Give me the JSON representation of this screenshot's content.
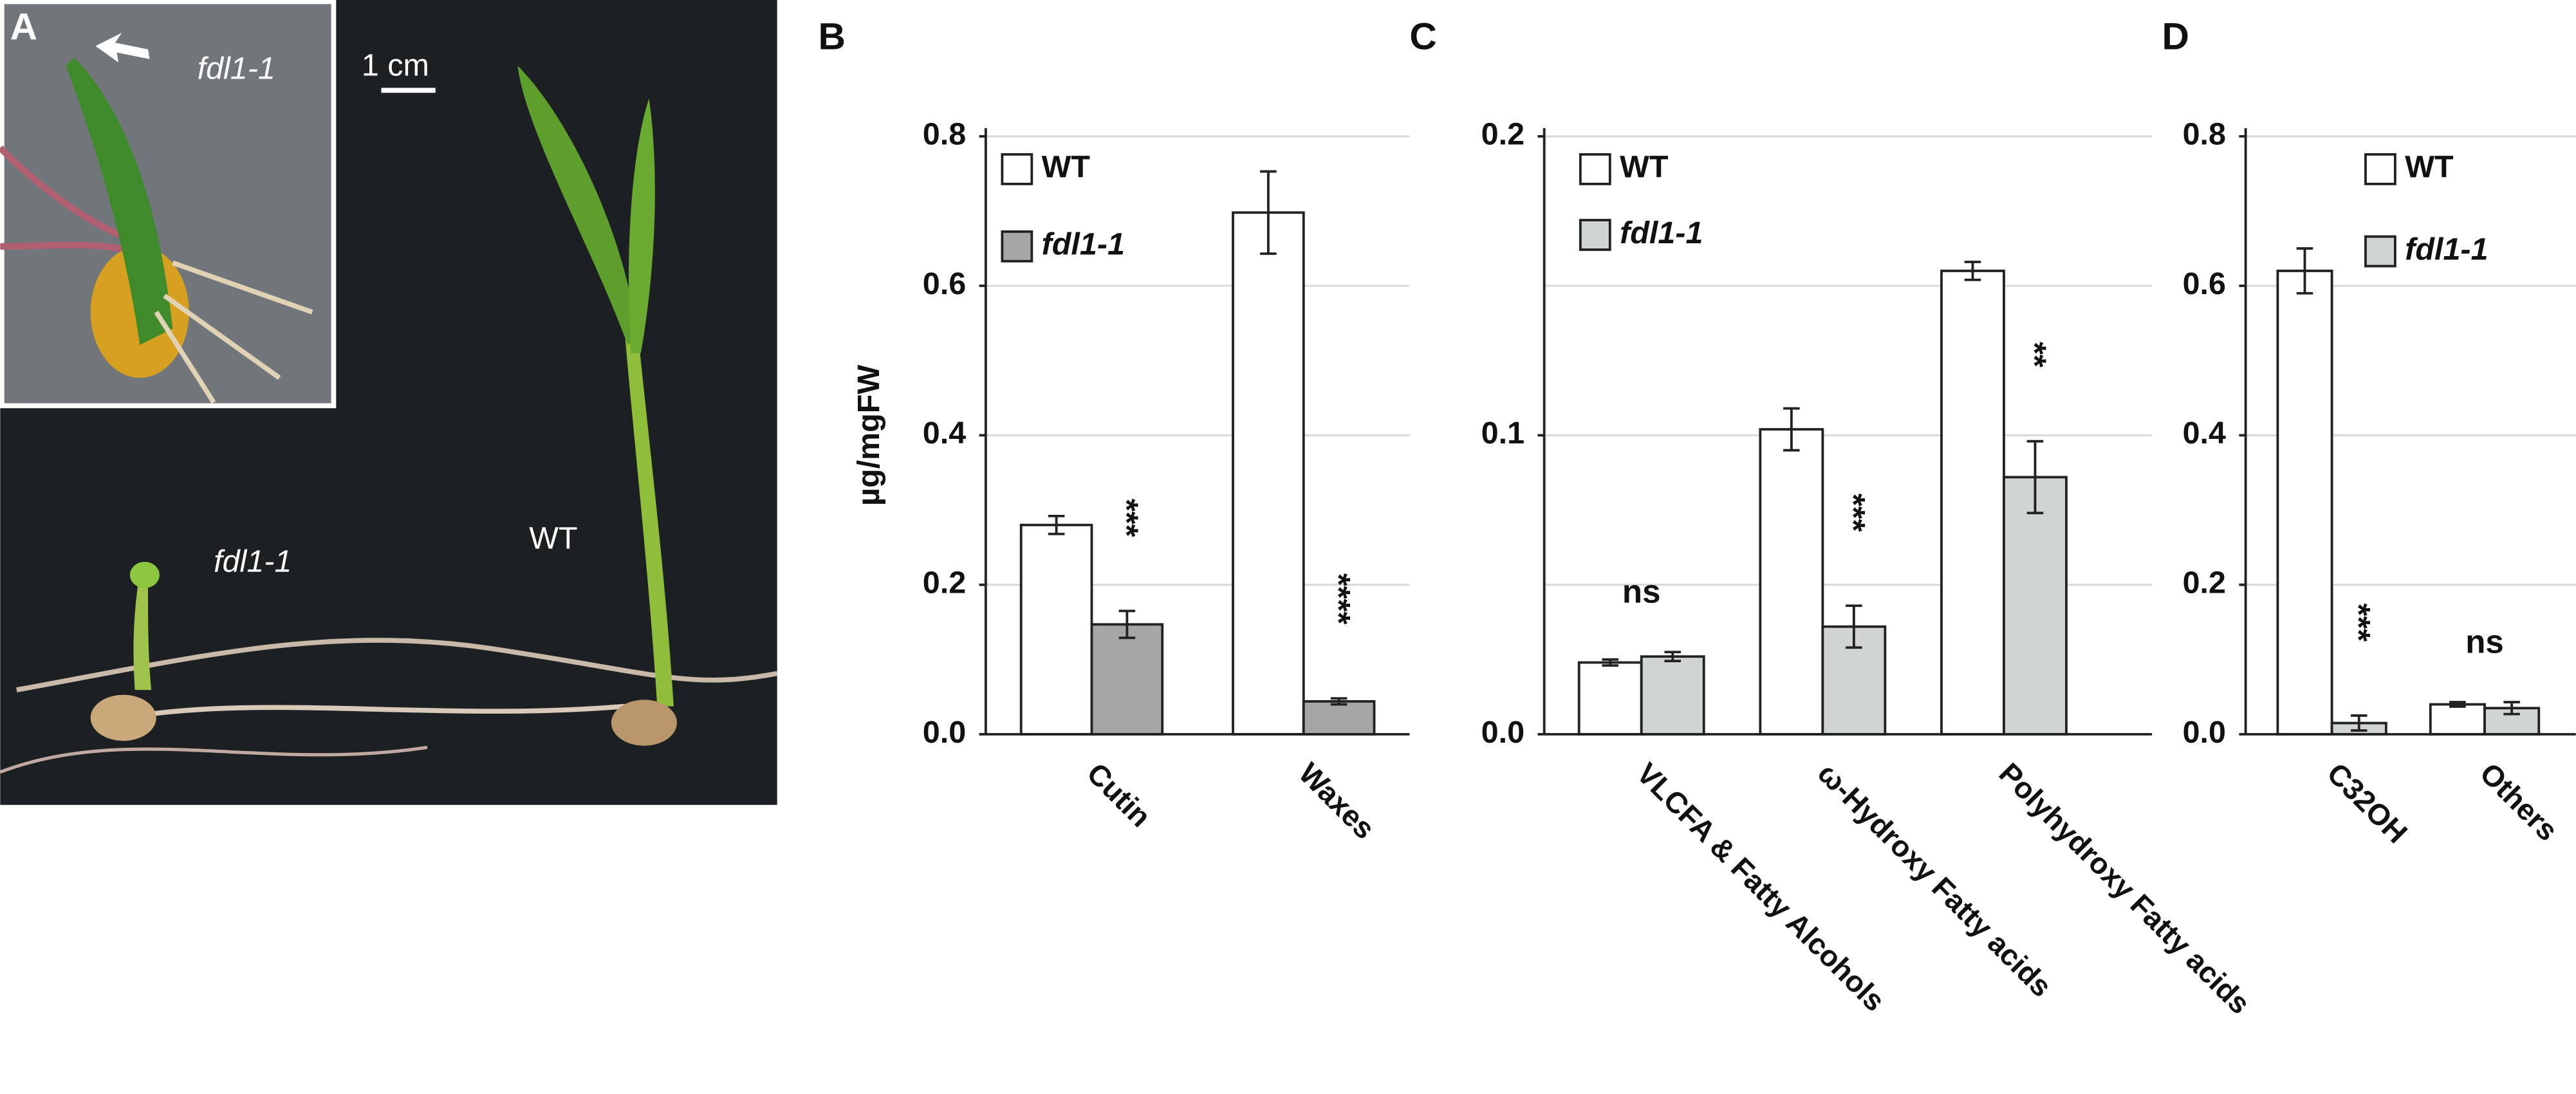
{
  "photo": {
    "panel_label": "A",
    "inset_label": "fdl1-1",
    "scale_bar": "1 cm",
    "mutant_label": "fdl1-1",
    "wt_label": "WT"
  },
  "chart_data": [
    {
      "type": "bar",
      "panel_label": "B",
      "ylabel": "µg/mgFW",
      "categories": [
        "Cutin",
        "Waxes"
      ],
      "series": [
        {
          "name": "WT",
          "color": "#ffffff",
          "values": [
            0.28,
            0.698
          ],
          "errors": [
            0.012,
            0.055
          ]
        },
        {
          "name": "fdl1-1",
          "color": "#a6a6a6",
          "values": [
            0.147,
            0.044
          ],
          "errors": [
            0.018,
            0.004
          ]
        }
      ],
      "significance": [
        "***",
        "****"
      ],
      "ylim": [
        0,
        0.8
      ],
      "yticks": [
        {
          "value": 0,
          "label": "0.0"
        },
        0.2,
        0.4,
        0.6,
        0.8
      ],
      "ygrid": [
        0.2,
        0.4,
        0.6,
        0.8
      ]
    },
    {
      "type": "bar",
      "panel_label": "C",
      "categories": [
        "VLCFA & Fatty Alcohols",
        "ω-Hydroxy Fatty acids",
        "Polyhydroxy Fatty acids"
      ],
      "series": [
        {
          "name": "WT",
          "color": "#ffffff",
          "values": [
            0.024,
            0.102,
            0.155
          ],
          "errors": [
            0.001,
            0.007,
            0.003
          ]
        },
        {
          "name": "fdl1-1",
          "color": "#d0d5d3",
          "values": [
            0.026,
            0.036,
            0.086
          ],
          "errors": [
            0.0015,
            0.007,
            0.012
          ]
        }
      ],
      "significance": [
        "ns",
        "***",
        "**"
      ],
      "ylim": [
        0,
        0.2
      ],
      "yticks": [
        {
          "value": 0,
          "label": "0.0"
        },
        0.1,
        0.2
      ],
      "ygrid": [
        0.05,
        0.1,
        0.15,
        0.2
      ]
    },
    {
      "type": "bar",
      "panel_label": "D",
      "categories": [
        "C32OH",
        "Others"
      ],
      "series": [
        {
          "name": "WT",
          "color": "#ffffff",
          "values": [
            0.62,
            0.04
          ],
          "errors": [
            0.03,
            0.003
          ]
        },
        {
          "name": "fdl1-1",
          "color": "#d0d5d3",
          "values": [
            0.015,
            0.035
          ],
          "errors": [
            0.01,
            0.008
          ]
        }
      ],
      "significance": [
        "***",
        "ns"
      ],
      "ylim": [
        0,
        0.8
      ],
      "yticks": [
        {
          "value": 0,
          "label": "0.0"
        },
        0.2,
        0.4,
        0.6,
        0.8
      ],
      "ygrid": [
        0.2,
        0.4,
        0.6,
        0.8
      ]
    }
  ]
}
